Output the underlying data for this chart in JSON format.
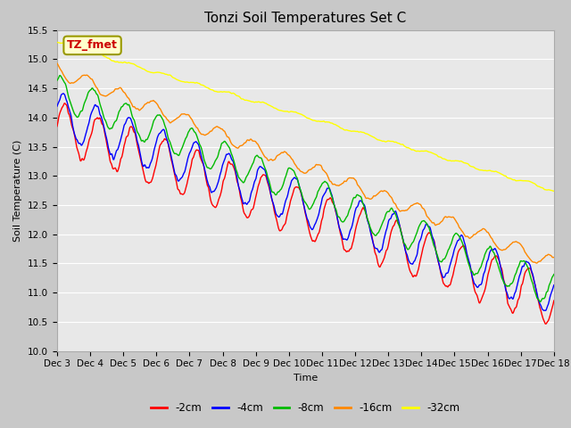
{
  "title": "Tonzi Soil Temperatures Set C",
  "xlabel": "Time",
  "ylabel": "Soil Temperature (C)",
  "ylim": [
    10.0,
    15.5
  ],
  "yticks": [
    10.0,
    10.5,
    11.0,
    11.5,
    12.0,
    12.5,
    13.0,
    13.5,
    14.0,
    14.5,
    15.0,
    15.5
  ],
  "start_day": 3,
  "end_day": 18,
  "n_points": 1440,
  "series_names": [
    "-2cm",
    "-4cm",
    "-8cm",
    "-16cm",
    "-32cm"
  ],
  "series_colors": [
    "#ff0000",
    "#0000ff",
    "#00bb00",
    "#ff8800",
    "#ffff00"
  ],
  "series_starts": [
    13.85,
    14.05,
    14.45,
    14.8,
    15.28
  ],
  "series_ends": [
    10.85,
    11.0,
    11.05,
    11.5,
    12.75
  ],
  "series_amplitudes": [
    0.42,
    0.38,
    0.28,
    0.12,
    0.025
  ],
  "series_phases": [
    0.0,
    0.4,
    1.0,
    2.2,
    0.0
  ],
  "series_noise": [
    0.055,
    0.048,
    0.038,
    0.025,
    0.012
  ],
  "annotation_text": "TZ_fmet",
  "annotation_box_color": "#ffffcc",
  "annotation_border_color": "#999900",
  "fig_facecolor": "#c8c8c8",
  "ax_facecolor": "#e8e8e8",
  "grid_color": "#ffffff",
  "title_fontsize": 11,
  "axis_label_fontsize": 8,
  "tick_fontsize": 7.5,
  "legend_fontsize": 8.5
}
